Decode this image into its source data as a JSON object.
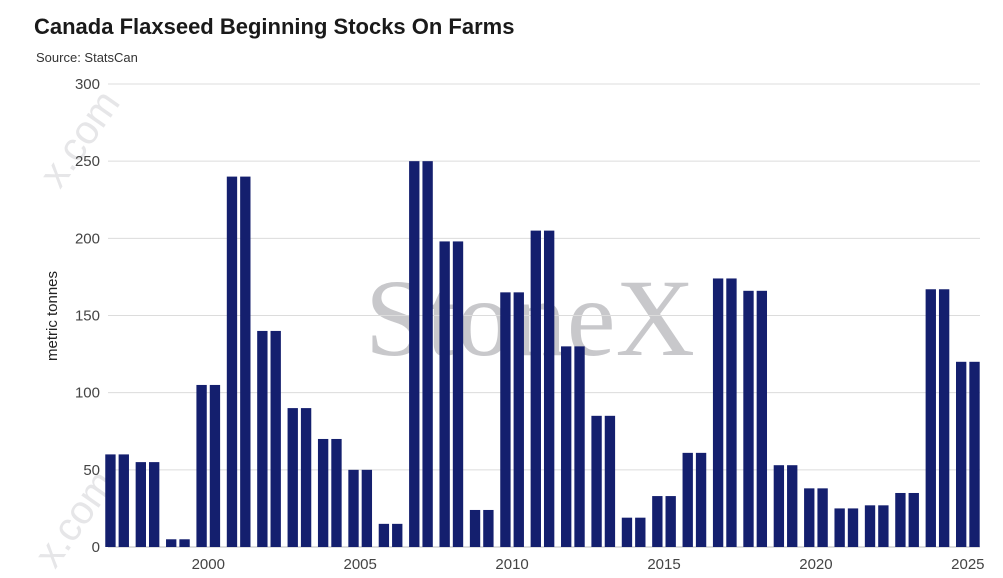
{
  "chart_data": {
    "type": "bar",
    "title": "Canada Flaxseed Beginning Stocks On Farms",
    "subtitle": "Source: StatsCan",
    "ylabel": "metric tonnes",
    "xlabel": "",
    "ylim": [
      0,
      300
    ],
    "xlim": [
      1996.7,
      2025.4
    ],
    "yticks": [
      0,
      50,
      100,
      150,
      200,
      250,
      300
    ],
    "xticks": [
      2000,
      2005,
      2010,
      2015,
      2020,
      2025
    ],
    "grid": true,
    "color": "#141f6e",
    "watermark": "StoneX",
    "watermark_side": "x.com",
    "x": [
      1997,
      1998,
      1999,
      2000,
      2001,
      2002,
      2003,
      2004,
      2005,
      2006,
      2007,
      2008,
      2009,
      2010,
      2011,
      2012,
      2013,
      2014,
      2015,
      2016,
      2017,
      2018,
      2019,
      2020,
      2021,
      2022,
      2023,
      2024,
      2025
    ],
    "values": [
      60,
      55,
      5,
      105,
      240,
      140,
      90,
      70,
      50,
      15,
      250,
      198,
      24,
      165,
      205,
      130,
      85,
      19,
      33,
      61,
      174,
      166,
      53,
      38,
      25,
      27,
      35,
      167,
      120
    ]
  }
}
